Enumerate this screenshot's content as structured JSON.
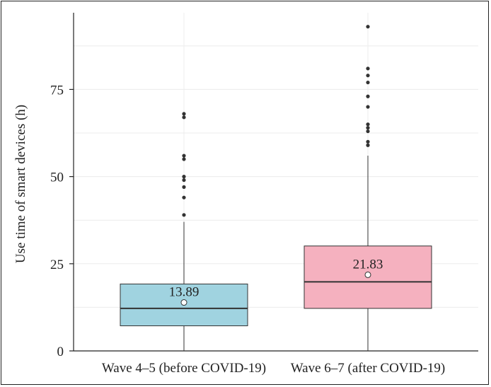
{
  "chart_data": {
    "type": "box",
    "title": "",
    "xlabel": "",
    "ylabel": "Use time of smart devices (h)",
    "ylim": [
      0,
      97
    ],
    "yticks": [
      0,
      25,
      50,
      75
    ],
    "ytick_labels": [
      "0",
      "25",
      "50",
      "75"
    ],
    "grid": true,
    "categories": [
      "Wave 4–5 (before COVID-19)",
      "Wave 6–7 (after COVID-19)"
    ],
    "boxes": [
      {
        "name": "Wave 4–5 (before COVID-19)",
        "color": "#a0d3e0",
        "whisker_low": 0,
        "q1": 7.2,
        "median": 12.2,
        "q3": 19.2,
        "whisker_high": 37,
        "mean": 13.89,
        "mean_label": "13.89",
        "outliers": [
          39,
          44,
          47,
          49,
          50,
          55,
          56,
          67,
          68
        ]
      },
      {
        "name": "Wave 6–7 (after COVID-19)",
        "color": "#f5b1bf",
        "whisker_low": 0,
        "q1": 12.2,
        "median": 19.8,
        "q3": 30.1,
        "whisker_high": 56,
        "mean": 21.83,
        "mean_label": "21.83",
        "outliers": [
          59,
          60,
          63,
          64,
          65,
          70,
          73,
          77,
          79,
          81,
          93
        ]
      }
    ]
  }
}
